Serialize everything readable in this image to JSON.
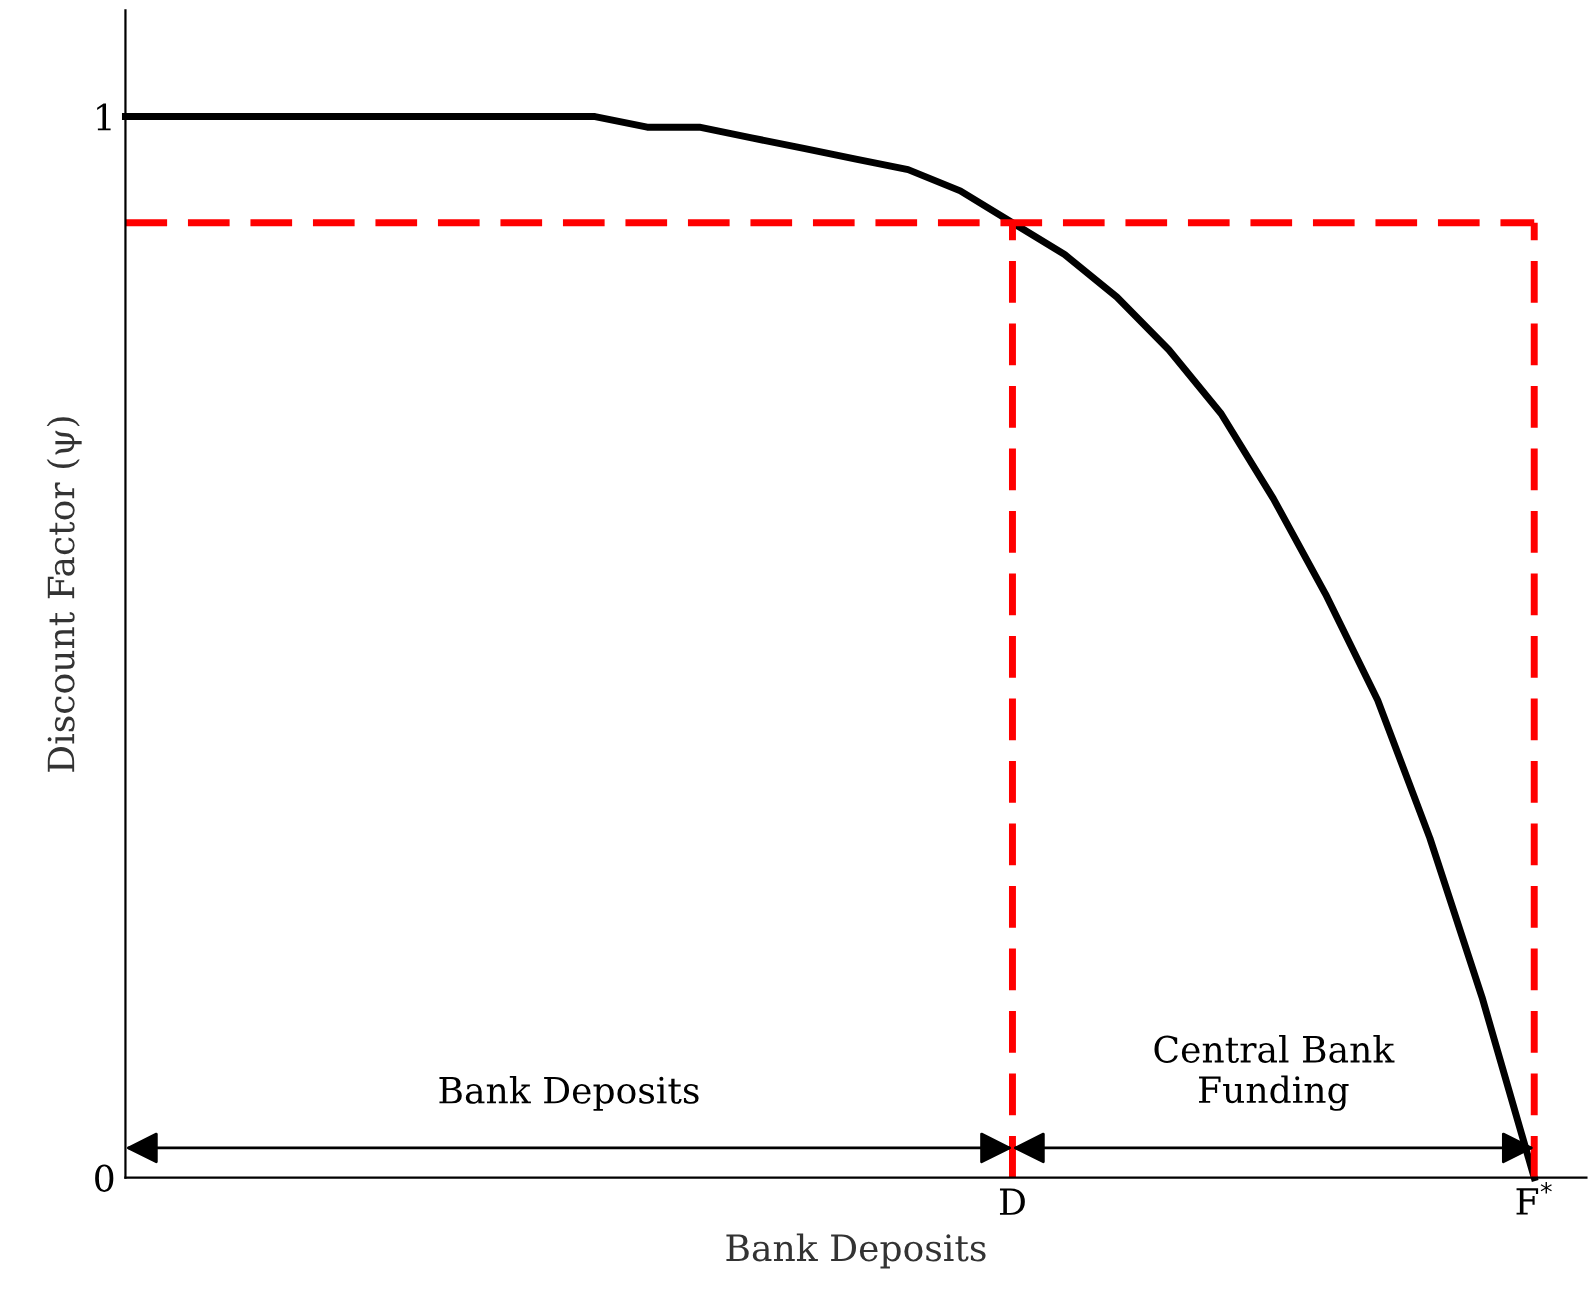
{
  "chart_data": {
    "type": "line",
    "xlabel": "Bank Deposits",
    "ylabel": "Discount Factor (ψ)",
    "categories": [
      null,
      null,
      null,
      null,
      null,
      null,
      null,
      null,
      null,
      null,
      null,
      null,
      null,
      null,
      null,
      null,
      null,
      "D",
      null,
      null,
      null,
      null,
      null,
      null,
      null,
      null,
      null,
      "F$^{*}$"
    ],
    "ylim": [
      0,
      1.1
    ],
    "yticks": [
      0,
      1
    ],
    "grid": false,
    "marker": "none",
    "series": [
      {
        "color": "#000000",
        "line_style": "solid",
        "values": [
          1,
          1,
          1,
          1,
          1,
          1,
          1,
          1,
          1,
          1,
          0.99,
          0.99,
          0.98,
          0.97,
          0.96,
          0.95,
          0.93,
          0.9,
          0.87,
          0.83,
          0.78,
          0.72,
          0.64,
          0.55,
          0.45,
          0.32,
          0.17,
          0
        ]
      }
    ],
    "ref_lines": [
      {
        "axis": "y",
        "value": 0.9,
        "color": "#ff0000",
        "line_style": "dashed"
      },
      {
        "axis": "x",
        "value": "D",
        "color": "#ff0000",
        "line_style": "dashed"
      },
      {
        "axis": "x",
        "value": "F$^{*}$",
        "color": "#ff0000",
        "line_style": "dashed"
      }
    ],
    "annotations": [
      "Bank Deposits",
      "Central Bank\nFunding"
    ]
  }
}
